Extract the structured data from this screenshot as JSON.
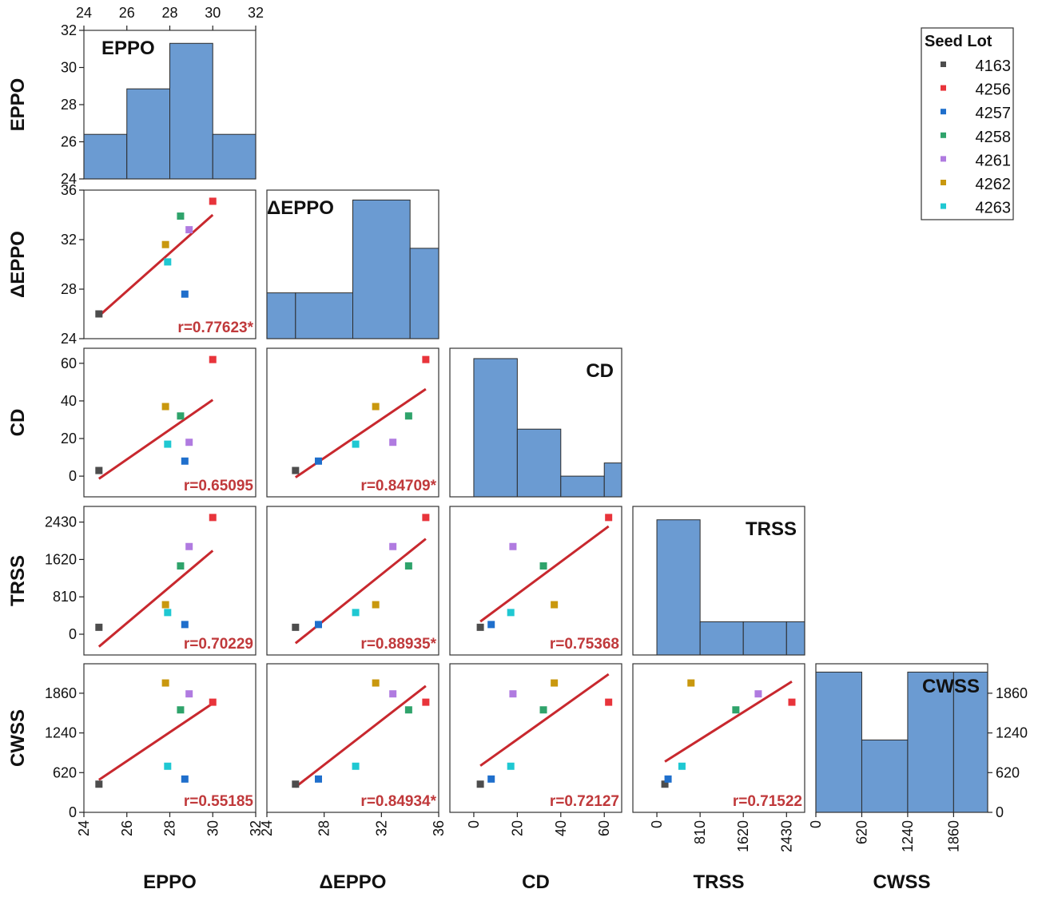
{
  "chart_data": {
    "type": "scatter",
    "title": "",
    "variables": [
      "EPPO",
      "ΔEPPO",
      "CD",
      "TRSS",
      "CWSS"
    ],
    "axes": {
      "EPPO": {
        "range": [
          24,
          32
        ],
        "ticks": [
          24,
          26,
          28,
          30,
          32
        ],
        "labels": [
          "24",
          "26",
          "28",
          "30",
          "32"
        ]
      },
      "ΔEPPO": {
        "range": [
          24,
          36
        ],
        "ticks": [
          24,
          28,
          32,
          36
        ],
        "labels": [
          "24",
          "28",
          "32",
          "36"
        ]
      },
      "CD": {
        "range": [
          -11,
          68
        ],
        "ticks": [
          0,
          20,
          40,
          60
        ],
        "labels": [
          "0",
          "20",
          "40",
          "60"
        ]
      },
      "TRSS": {
        "range": [
          -450,
          2770
        ],
        "ticks": [
          0,
          810,
          1620,
          2430
        ],
        "labels": [
          "0",
          "810",
          "1620",
          "2430"
        ]
      },
      "CWSS": {
        "range": [
          0,
          2320
        ],
        "ticks": [
          0,
          620,
          1240,
          1860
        ],
        "labels": [
          "0",
          "620",
          "1240",
          "1860"
        ]
      }
    },
    "legend": {
      "title": "Seed Lot",
      "position": "top-right",
      "entries": [
        {
          "name": "4163",
          "color": "#4d4d4d"
        },
        {
          "name": "4256",
          "color": "#e8343b"
        },
        {
          "name": "4257",
          "color": "#1f6fcc"
        },
        {
          "name": "4258",
          "color": "#2fa36b"
        },
        {
          "name": "4261",
          "color": "#b07be0"
        },
        {
          "name": "4262",
          "color": "#c9980e"
        },
        {
          "name": "4263",
          "color": "#1fc8d2"
        }
      ]
    },
    "points": [
      {
        "lot": "4163",
        "EPPO": 24.7,
        "ΔEPPO": 26.0,
        "CD": 3,
        "TRSS": 150,
        "CWSS": 440
      },
      {
        "lot": "4256",
        "EPPO": 30.0,
        "ΔEPPO": 35.1,
        "CD": 62,
        "TRSS": 2530,
        "CWSS": 1720
      },
      {
        "lot": "4257",
        "EPPO": 28.7,
        "ΔEPPO": 27.6,
        "CD": 8,
        "TRSS": 210,
        "CWSS": 520
      },
      {
        "lot": "4258",
        "EPPO": 28.5,
        "ΔEPPO": 33.9,
        "CD": 32,
        "TRSS": 1480,
        "CWSS": 1600
      },
      {
        "lot": "4261",
        "EPPO": 28.9,
        "ΔEPPO": 32.8,
        "CD": 18,
        "TRSS": 1900,
        "CWSS": 1850
      },
      {
        "lot": "4262",
        "EPPO": 27.8,
        "ΔEPPO": 31.6,
        "CD": 37,
        "TRSS": 640,
        "CWSS": 2020
      },
      {
        "lot": "4263",
        "EPPO": 27.9,
        "ΔEPPO": 30.2,
        "CD": 17,
        "TRSS": 470,
        "CWSS": 720
      }
    ],
    "correlations": [
      {
        "x": "EPPO",
        "y": "ΔEPPO",
        "r": "r=0.77623*"
      },
      {
        "x": "EPPO",
        "y": "CD",
        "r": "r=0.65095"
      },
      {
        "x": "ΔEPPO",
        "y": "CD",
        "r": "r=0.84709*"
      },
      {
        "x": "EPPO",
        "y": "TRSS",
        "r": "r=0.70229"
      },
      {
        "x": "ΔEPPO",
        "y": "TRSS",
        "r": "r=0.88935*"
      },
      {
        "x": "CD",
        "y": "TRSS",
        "r": "r=0.75368"
      },
      {
        "x": "EPPO",
        "y": "CWSS",
        "r": "r=0.55185"
      },
      {
        "x": "ΔEPPO",
        "y": "CWSS",
        "r": "r=0.84934*"
      },
      {
        "x": "CD",
        "y": "CWSS",
        "r": "r=0.72127"
      },
      {
        "x": "TRSS",
        "y": "CWSS",
        "r": "r=0.71522"
      }
    ],
    "histograms": [
      {
        "var": "EPPO",
        "label": "EPPO",
        "edges": [
          24,
          26,
          28,
          30,
          32
        ],
        "counts": [
          26.4,
          28.85,
          31.3,
          26.4
        ]
      },
      {
        "var": "ΔEPPO",
        "label": "ΔEPPO",
        "edges": [
          24,
          26,
          30,
          34,
          36
        ],
        "counts": [
          27.7,
          27.7,
          35.2,
          31.3
        ]
      },
      {
        "var": "CD",
        "label": "CD",
        "edges": [
          0,
          20,
          40,
          60,
          68
        ],
        "counts": [
          62.5,
          25,
          0,
          7
        ]
      },
      {
        "var": "TRSS",
        "label": "TRSS",
        "edges": [
          0,
          810,
          1620,
          2430,
          2770
        ],
        "counts": [
          2480,
          270,
          270,
          270
        ]
      },
      {
        "var": "CWSS",
        "label": "CWSS",
        "edges": [
          0,
          620,
          1240,
          1860,
          2320
        ],
        "counts": [
          2190,
          1130,
          2190,
          2190
        ]
      }
    ],
    "grid": false
  },
  "colors": {
    "bar_fill": "#6b9bd2",
    "bar_stroke": "#2b2b2b",
    "fit_line": "#c8282e",
    "r_text": "#c0393b",
    "frame": "#333333"
  }
}
